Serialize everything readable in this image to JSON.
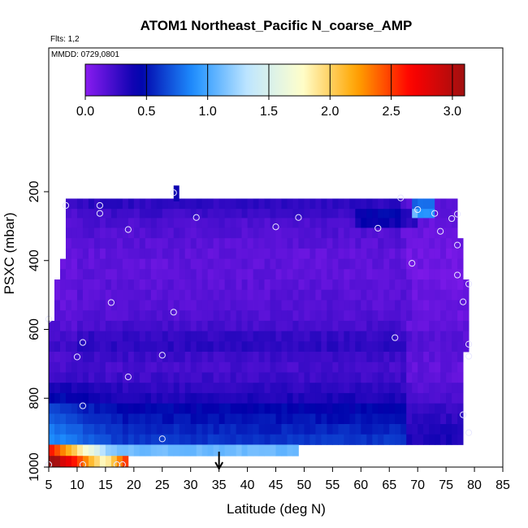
{
  "chart_data": {
    "type": "heatmap",
    "title": "ATOM1 Northeast_Pacific N_coarse_AMP",
    "flights_label": "Flts: 1,2",
    "date_label": "MMDD: 0729,0801",
    "xlabel": "Latitude (deg N)",
    "ylabel": "PSXC (mbar)",
    "xlim": [
      5,
      85
    ],
    "ylim": [
      1000,
      75
    ],
    "y_reversed": true,
    "x_ticks": [
      5,
      10,
      15,
      20,
      25,
      30,
      35,
      40,
      45,
      50,
      55,
      60,
      65,
      70,
      75,
      80,
      85
    ],
    "y_ticks": [
      200,
      400,
      600,
      800,
      1000
    ],
    "colorbar": {
      "ticks": [
        0.0,
        0.5,
        1.0,
        1.5,
        2.0,
        2.5,
        3.0
      ],
      "tick_labels": [
        "0.0",
        "0.5",
        "1.0",
        "1.5",
        "2.0",
        "2.5",
        "3.0"
      ],
      "range": [
        0.0,
        3.1
      ],
      "stops": [
        "#8a1cf0",
        "#0000aa",
        "#1e90ff",
        "#bfe6ff",
        "#ffffcc",
        "#ffa500",
        "#ff0000",
        "#a01010"
      ]
    },
    "arrow_x": 35,
    "grid": false,
    "bands": [
      {
        "p": 237,
        "lat": [
          8,
          77
        ],
        "base": 0.3
      },
      {
        "p": 263,
        "lat": [
          8,
          77
        ],
        "base": 0.25
      },
      {
        "p": 290,
        "lat": [
          8,
          77
        ],
        "base": 0.2
      },
      {
        "p": 320,
        "lat": [
          8,
          77
        ],
        "base": 0.18
      },
      {
        "p": 350,
        "lat": [
          8,
          78
        ],
        "base": 0.16
      },
      {
        "p": 380,
        "lat": [
          8,
          78
        ],
        "base": 0.14
      },
      {
        "p": 410,
        "lat": [
          7,
          78
        ],
        "base": 0.14
      },
      {
        "p": 440,
        "lat": [
          7,
          78
        ],
        "base": 0.14
      },
      {
        "p": 470,
        "lat": [
          6,
          79
        ],
        "base": 0.15
      },
      {
        "p": 500,
        "lat": [
          6,
          79
        ],
        "base": 0.16
      },
      {
        "p": 530,
        "lat": [
          6,
          79
        ],
        "base": 0.17
      },
      {
        "p": 560,
        "lat": [
          6,
          79
        ],
        "base": 0.18
      },
      {
        "p": 590,
        "lat": [
          5,
          79
        ],
        "base": 0.22
      },
      {
        "p": 620,
        "lat": [
          5,
          79
        ],
        "base": 0.28
      },
      {
        "p": 650,
        "lat": [
          5,
          79
        ],
        "base": 0.3
      },
      {
        "p": 680,
        "lat": [
          5,
          78
        ],
        "base": 0.25
      },
      {
        "p": 710,
        "lat": [
          5,
          78
        ],
        "base": 0.22
      },
      {
        "p": 740,
        "lat": [
          5,
          78
        ],
        "base": 0.25
      },
      {
        "p": 770,
        "lat": [
          5,
          78
        ],
        "base": 0.3
      },
      {
        "p": 800,
        "lat": [
          5,
          78
        ],
        "base": 0.35
      },
      {
        "p": 830,
        "lat": [
          5,
          78
        ],
        "base": 0.45
      },
      {
        "p": 860,
        "lat": [
          5,
          78
        ],
        "base": 0.5
      },
      {
        "p": 890,
        "lat": [
          5,
          78
        ],
        "base": 0.55
      },
      {
        "p": 920,
        "lat": [
          5,
          78
        ],
        "base": 0.6
      },
      {
        "p": 950,
        "lat": [
          5,
          49
        ],
        "base": 1.1
      },
      {
        "p": 985,
        "lat": [
          5,
          19
        ],
        "base": 1.6
      }
    ],
    "top_spike": {
      "p": 200,
      "lat": [
        27,
        28
      ],
      "value": 0.4
    },
    "points": [
      {
        "lat": 8,
        "p": 240
      },
      {
        "lat": 14,
        "p": 240
      },
      {
        "lat": 14,
        "p": 263
      },
      {
        "lat": 19,
        "p": 310
      },
      {
        "lat": 27,
        "p": 203
      },
      {
        "lat": 31,
        "p": 275
      },
      {
        "lat": 45,
        "p": 302
      },
      {
        "lat": 49,
        "p": 275
      },
      {
        "lat": 63,
        "p": 306
      },
      {
        "lat": 67,
        "p": 218
      },
      {
        "lat": 70,
        "p": 252
      },
      {
        "lat": 73,
        "p": 263
      },
      {
        "lat": 74,
        "p": 315
      },
      {
        "lat": 76,
        "p": 278
      },
      {
        "lat": 77,
        "p": 265
      },
      {
        "lat": 77,
        "p": 355
      },
      {
        "lat": 69,
        "p": 408
      },
      {
        "lat": 77,
        "p": 442
      },
      {
        "lat": 79,
        "p": 468
      },
      {
        "lat": 78,
        "p": 520
      },
      {
        "lat": 16,
        "p": 522
      },
      {
        "lat": 27,
        "p": 550
      },
      {
        "lat": 5,
        "p": 570
      },
      {
        "lat": 66,
        "p": 624
      },
      {
        "lat": 11,
        "p": 638
      },
      {
        "lat": 79,
        "p": 643
      },
      {
        "lat": 10,
        "p": 680
      },
      {
        "lat": 25,
        "p": 675
      },
      {
        "lat": 79,
        "p": 678
      },
      {
        "lat": 19,
        "p": 738
      },
      {
        "lat": 11,
        "p": 822
      },
      {
        "lat": 78,
        "p": 848
      },
      {
        "lat": 79,
        "p": 900
      },
      {
        "lat": 25,
        "p": 918
      },
      {
        "lat": 5,
        "p": 993
      },
      {
        "lat": 11,
        "p": 993
      },
      {
        "lat": 17,
        "p": 993
      },
      {
        "lat": 18,
        "p": 993
      }
    ]
  }
}
